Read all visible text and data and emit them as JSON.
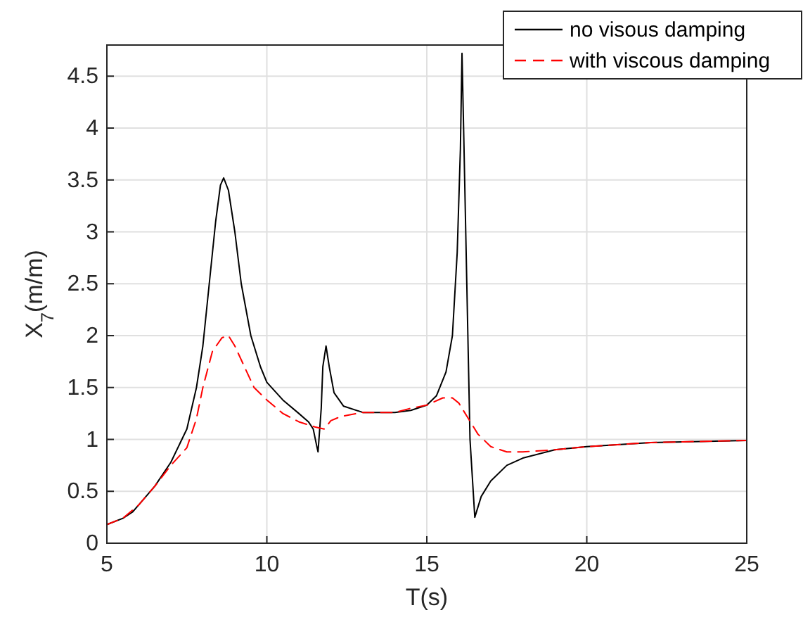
{
  "chart_data": {
    "type": "line",
    "xlabel": "T(s)",
    "ylabel": "X$_{7}$(m/m)",
    "xlim": [
      5,
      25
    ],
    "xticks": [
      5,
      10,
      15,
      20,
      25
    ],
    "ylim": [
      0,
      4.8
    ],
    "yticks": [
      0,
      0.5,
      1,
      1.5,
      2,
      2.5,
      3,
      3.5,
      4,
      4.5
    ],
    "grid": true,
    "legend": "top right",
    "series": [
      {
        "name": "no visous damping",
        "color": "#000000",
        "line_style": "solid",
        "x": [
          5,
          5.5,
          5.8,
          6,
          6.5,
          7,
          7.5,
          7.8,
          8,
          8.2,
          8.4,
          8.55,
          8.65,
          8.8,
          9,
          9.2,
          9.5,
          9.8,
          10,
          10.5,
          11,
          11.3,
          11.45,
          11.55,
          11.6,
          11.7,
          11.75,
          11.85,
          11.95,
          12.1,
          12.4,
          13,
          14,
          14.5,
          15,
          15.3,
          15.6,
          15.8,
          15.95,
          16.05,
          16.1,
          16.15,
          16.25,
          16.35,
          16.5,
          16.7,
          17,
          17.5,
          18,
          19,
          20,
          22,
          25
        ],
        "values": [
          0.18,
          0.24,
          0.3,
          0.37,
          0.55,
          0.78,
          1.1,
          1.5,
          1.9,
          2.5,
          3.1,
          3.45,
          3.52,
          3.4,
          3.0,
          2.5,
          2.0,
          1.7,
          1.55,
          1.38,
          1.25,
          1.17,
          1.1,
          0.95,
          0.88,
          1.3,
          1.7,
          1.9,
          1.7,
          1.45,
          1.32,
          1.26,
          1.26,
          1.28,
          1.33,
          1.42,
          1.65,
          2.0,
          2.8,
          3.8,
          4.72,
          4.0,
          2.5,
          1.0,
          0.25,
          0.45,
          0.6,
          0.75,
          0.82,
          0.9,
          0.93,
          0.97,
          0.99
        ]
      },
      {
        "name": "with viscous damping",
        "color": "#ff0000",
        "line_style": "dashed",
        "x": [
          5,
          5.5,
          6,
          6.5,
          7,
          7.5,
          7.8,
          8,
          8.3,
          8.6,
          8.8,
          9,
          9.3,
          9.6,
          10,
          10.5,
          11,
          11.5,
          11.8,
          12,
          12.3,
          13,
          14,
          14.5,
          15,
          15.5,
          15.8,
          16,
          16.3,
          16.6,
          17,
          17.5,
          18,
          19,
          20,
          22,
          25
        ],
        "values": [
          0.18,
          0.24,
          0.37,
          0.55,
          0.75,
          0.92,
          1.2,
          1.5,
          1.85,
          1.98,
          2.0,
          1.9,
          1.7,
          1.5,
          1.38,
          1.25,
          1.17,
          1.12,
          1.1,
          1.18,
          1.22,
          1.26,
          1.26,
          1.3,
          1.33,
          1.4,
          1.4,
          1.35,
          1.2,
          1.05,
          0.93,
          0.88,
          0.88,
          0.9,
          0.93,
          0.97,
          0.99
        ]
      }
    ]
  }
}
